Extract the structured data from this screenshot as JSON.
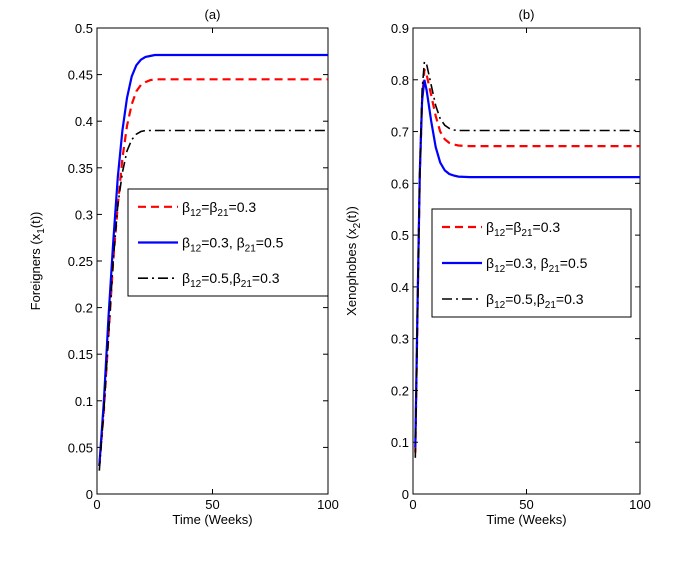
{
  "colors": {
    "series1": "#ff0000",
    "series2": "#0000ff",
    "series3": "#000000"
  },
  "chart_data": [
    {
      "type": "line",
      "title": "(a)",
      "xlabel": "Time (Weeks)",
      "ylabel_main": "Foreigners (x",
      "ylabel_sub": "1",
      "ylabel_end": "(t))",
      "xlim": [
        0,
        100
      ],
      "ylim": [
        0,
        0.5
      ],
      "xticks": [
        0,
        50,
        100
      ],
      "xtick_labels": [
        "0",
        "50",
        "100"
      ],
      "yticks": [
        0,
        0.05,
        0.1,
        0.15,
        0.2,
        0.25,
        0.3,
        0.35,
        0.4,
        0.45,
        0.5
      ],
      "ytick_labels": [
        "0",
        "0.05",
        "0.1",
        "0.15",
        "0.2",
        "0.25",
        "0.3",
        "0.35",
        "0.4",
        "0.45",
        "0.5"
      ],
      "series": [
        {
          "x": [
            1,
            3,
            5,
            7,
            9,
            11,
            13,
            15,
            17,
            19,
            21,
            23,
            25,
            30,
            40,
            60,
            80,
            100
          ],
          "y": [
            0.03,
            0.09,
            0.17,
            0.25,
            0.31,
            0.36,
            0.395,
            0.418,
            0.432,
            0.439,
            0.442,
            0.444,
            0.445,
            0.445,
            0.445,
            0.445,
            0.445,
            0.445
          ]
        },
        {
          "x": [
            1,
            3,
            5,
            7,
            9,
            11,
            13,
            15,
            17,
            19,
            21,
            23,
            25,
            30,
            40,
            60,
            80,
            100
          ],
          "y": [
            0.03,
            0.1,
            0.19,
            0.27,
            0.34,
            0.39,
            0.425,
            0.448,
            0.46,
            0.466,
            0.469,
            0.47,
            0.471,
            0.471,
            0.471,
            0.471,
            0.471,
            0.471
          ]
        },
        {
          "x": [
            1,
            3,
            5,
            7,
            9,
            11,
            13,
            15,
            17,
            19,
            21,
            23,
            25,
            30,
            40,
            60,
            80,
            100
          ],
          "y": [
            0.025,
            0.09,
            0.17,
            0.25,
            0.31,
            0.345,
            0.368,
            0.38,
            0.386,
            0.389,
            0.39,
            0.39,
            0.39,
            0.39,
            0.39,
            0.39,
            0.39,
            0.39
          ]
        }
      ],
      "legend": {
        "placement": "center-right",
        "entries": [
          {
            "t1": "β",
            "s1": "12",
            "t2": "=β",
            "s2": "21",
            "t3": "=0.3"
          },
          {
            "t1": "β",
            "s1": "12",
            "t2": "=0.3, β",
            "s2": "21",
            "t3": "=0.5"
          },
          {
            "t1": "β",
            "s1": "12",
            "t2": "=0.5,β",
            "s2": "21",
            "t3": "=0.3"
          }
        ]
      }
    },
    {
      "type": "line",
      "title": "(b)",
      "xlabel": "Time (Weeks)",
      "ylabel_main": "Xenophobes (x",
      "ylabel_sub": "2",
      "ylabel_end": "(t))",
      "xlim": [
        0,
        100
      ],
      "ylim": [
        0,
        0.9
      ],
      "xticks": [
        0,
        50,
        100
      ],
      "xtick_labels": [
        "0",
        "50",
        "100"
      ],
      "yticks": [
        0,
        0.1,
        0.2,
        0.3,
        0.4,
        0.5,
        0.6,
        0.7,
        0.8,
        0.9
      ],
      "ytick_labels": [
        "0",
        "0.1",
        "0.2",
        "0.3",
        "0.4",
        "0.5",
        "0.6",
        "0.7",
        "0.8",
        "0.9"
      ],
      "series": [
        {
          "x": [
            1,
            2,
            3,
            4,
            5,
            6,
            8,
            10,
            12,
            14,
            16,
            18,
            20,
            25,
            30,
            40,
            60,
            80,
            100
          ],
          "y": [
            0.08,
            0.35,
            0.62,
            0.76,
            0.82,
            0.81,
            0.77,
            0.73,
            0.7,
            0.685,
            0.678,
            0.675,
            0.673,
            0.672,
            0.672,
            0.672,
            0.672,
            0.672,
            0.672
          ]
        },
        {
          "x": [
            1,
            2,
            3,
            4,
            5,
            6,
            8,
            10,
            12,
            14,
            16,
            18,
            20,
            25,
            30,
            40,
            60,
            80,
            100
          ],
          "y": [
            0.09,
            0.36,
            0.62,
            0.76,
            0.8,
            0.78,
            0.72,
            0.67,
            0.64,
            0.625,
            0.618,
            0.615,
            0.613,
            0.612,
            0.612,
            0.612,
            0.612,
            0.612,
            0.612
          ]
        },
        {
          "x": [
            1,
            2,
            3,
            4,
            5,
            6,
            8,
            10,
            12,
            14,
            16,
            18,
            20,
            25,
            30,
            40,
            60,
            80,
            100
          ],
          "y": [
            0.07,
            0.34,
            0.62,
            0.78,
            0.835,
            0.83,
            0.79,
            0.75,
            0.725,
            0.712,
            0.706,
            0.703,
            0.702,
            0.702,
            0.702,
            0.702,
            0.702,
            0.702,
            0.702
          ]
        }
      ],
      "legend": {
        "placement": "center-right",
        "entries": [
          {
            "t1": "β",
            "s1": "12",
            "t2": "=β",
            "s2": "21",
            "t3": "=0.3"
          },
          {
            "t1": "β",
            "s1": "12",
            "t2": "=0.3, β",
            "s2": "21",
            "t3": "=0.5"
          },
          {
            "t1": "β",
            "s1": "12",
            "t2": "=0.5,β",
            "s2": "21",
            "t3": "=0.3"
          }
        ]
      }
    }
  ]
}
